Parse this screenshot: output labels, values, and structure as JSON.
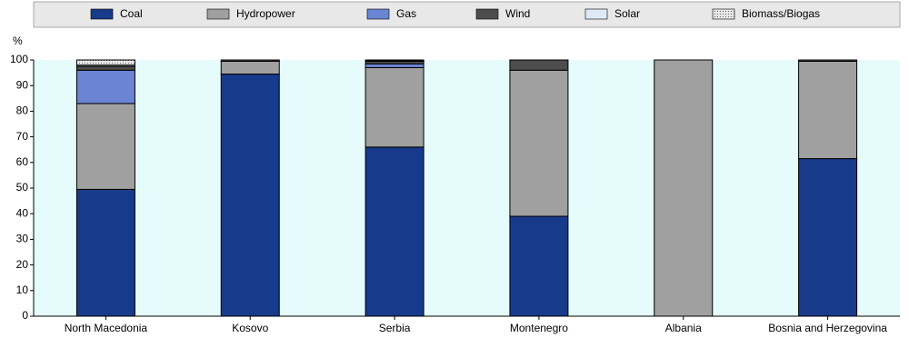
{
  "chart_data": {
    "type": "stacked_bar",
    "y_label": "%",
    "categories": [
      "North Macedonia",
      "Kosovo",
      "Serbia",
      "Montenegro",
      "Albania",
      "Bosnia and Herzegovina"
    ],
    "series": [
      {
        "name": "Coal",
        "color": "#173a8a",
        "values": [
          49.5,
          94.5,
          66,
          39,
          0,
          61.5
        ]
      },
      {
        "name": "Hydropower",
        "color": "#a0a0a0",
        "values": [
          33.5,
          5,
          31,
          57,
          100,
          38
        ]
      },
      {
        "name": "Gas",
        "color": "#6b84d4",
        "values": [
          13,
          0,
          1.5,
          0,
          0,
          0
        ]
      },
      {
        "name": "Wind",
        "color": "#4d4d4d",
        "values": [
          1.5,
          0.5,
          1,
          4,
          0,
          0.5
        ]
      },
      {
        "name": "Solar",
        "color": "#dfe8f5",
        "values": [
          0.5,
          0,
          0.2,
          0,
          0,
          0
        ]
      },
      {
        "name": "Biomass/Biogas",
        "color": "#c8c8c8",
        "values": [
          2,
          0,
          0.3,
          0,
          0,
          0
        ]
      }
    ],
    "ylim": [
      0,
      100
    ],
    "yticks": [
      0,
      10,
      20,
      30,
      40,
      50,
      60,
      70,
      80,
      90,
      100
    ],
    "grid": false
  }
}
